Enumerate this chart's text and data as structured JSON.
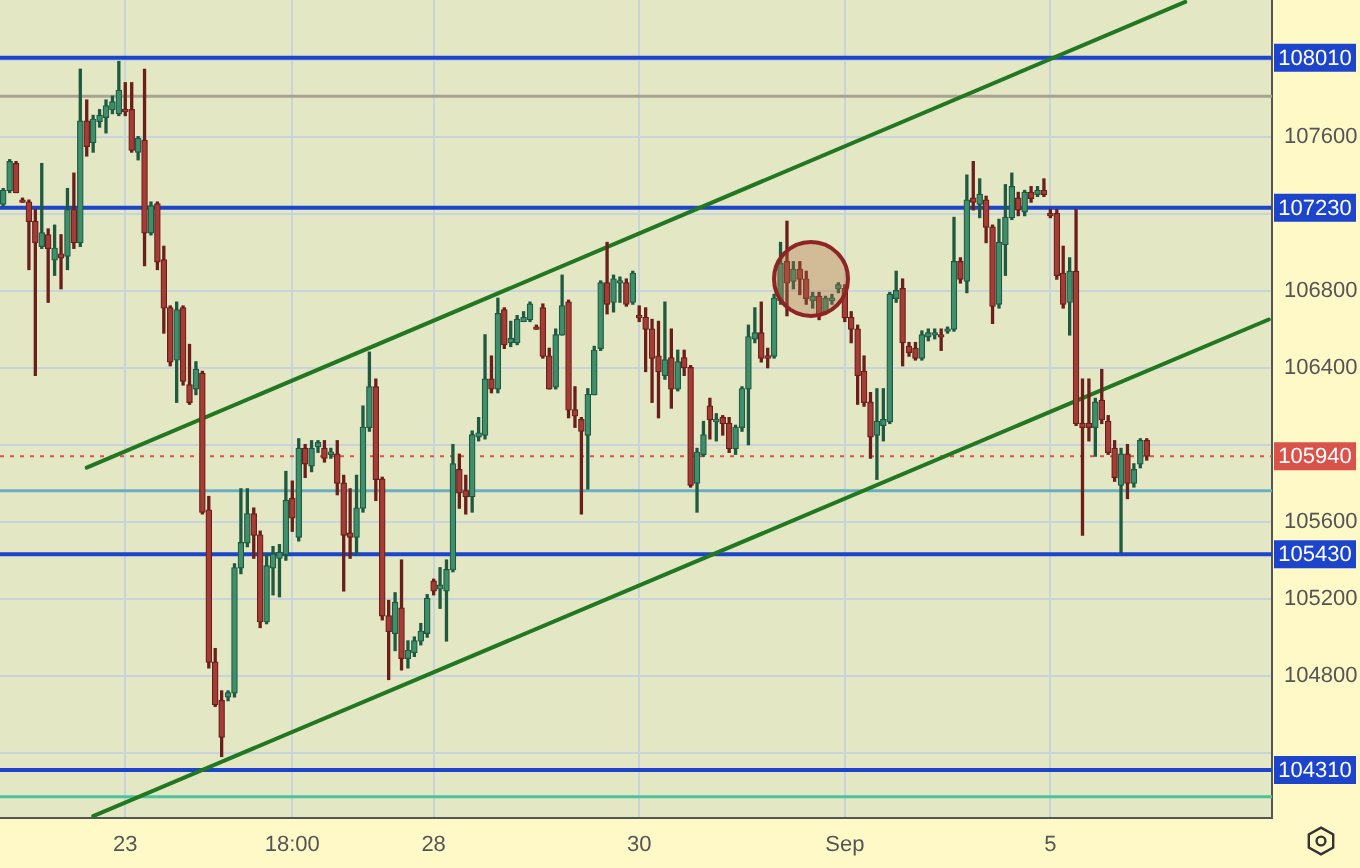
{
  "chart_data": {
    "type": "candlestick",
    "categories": [
      null,
      null,
      null,
      null,
      null,
      null,
      null,
      null,
      null,
      null,
      null,
      null,
      null,
      null,
      null,
      null,
      null,
      null,
      null,
      "23",
      null,
      null,
      null,
      null,
      null,
      null,
      null,
      null,
      null,
      null,
      null,
      null,
      null,
      null,
      null,
      null,
      null,
      null,
      null,
      null,
      null,
      null,
      null,
      null,
      null,
      "18:00",
      null,
      null,
      null,
      null,
      null,
      null,
      null,
      null,
      null,
      null,
      null,
      null,
      null,
      null,
      null,
      null,
      null,
      null,
      null,
      null,
      null,
      "28",
      null,
      null,
      null,
      null,
      null,
      null,
      null,
      null,
      null,
      null,
      null,
      null,
      null,
      null,
      null,
      null,
      null,
      null,
      null,
      null,
      null,
      null,
      null,
      null,
      null,
      null,
      null,
      null,
      null,
      null,
      null,
      "30",
      null,
      null,
      null,
      null,
      null,
      null,
      null,
      null,
      null,
      null,
      null,
      null,
      null,
      null,
      null,
      null,
      null,
      null,
      null,
      null,
      null,
      null,
      null,
      null,
      null,
      null,
      null,
      null,
      null,
      null,
      null,
      "Sep",
      null,
      null,
      null,
      null,
      null,
      null,
      null,
      null,
      null,
      null,
      null,
      null,
      null,
      null,
      null,
      null,
      null,
      null,
      null,
      null,
      null,
      null,
      null,
      null,
      null,
      null,
      null,
      null,
      null,
      null,
      null,
      "5",
      null,
      null,
      null,
      null,
      null,
      null,
      null,
      null,
      null,
      null,
      null,
      null,
      null,
      null,
      null,
      null,
      null,
      null,
      null,
      null,
      null,
      null,
      null,
      null,
      null,
      null,
      null,
      null,
      null,
      null,
      null,
      null,
      null,
      null
    ],
    "ohlc": [
      [
        107250,
        107330,
        107240,
        107320
      ],
      [
        107320,
        107480,
        107310,
        107470
      ],
      [
        107460,
        107470,
        107310,
        107310
      ],
      [
        107270,
        107280,
        107260,
        107260
      ],
      [
        107260,
        107270,
        106910,
        107160
      ],
      [
        107160,
        107220,
        106360,
        107050
      ],
      [
        107030,
        107460,
        107020,
        107100
      ],
      [
        107090,
        107120,
        106740,
        107020
      ],
      [
        106960,
        107140,
        106880,
        107020
      ],
      [
        106990,
        107090,
        106810,
        106970
      ],
      [
        106980,
        107330,
        106910,
        107220
      ],
      [
        107220,
        107410,
        107020,
        107050
      ],
      [
        107050,
        107950,
        107030,
        107680
      ],
      [
        107680,
        107790,
        107500,
        107550
      ],
      [
        107570,
        107710,
        107520,
        107690
      ],
      [
        107680,
        107740,
        107650,
        107710
      ],
      [
        107700,
        107790,
        107620,
        107760
      ],
      [
        107740,
        107810,
        107720,
        107780
      ],
      [
        107720,
        107990,
        107710,
        107840
      ],
      [
        107740,
        107880,
        107710,
        107730
      ],
      [
        107740,
        107880,
        107520,
        107530
      ],
      [
        107520,
        107600,
        107480,
        107590
      ],
      [
        107580,
        107950,
        106930,
        107100
      ],
      [
        107100,
        107260,
        107090,
        107240
      ],
      [
        107250,
        107260,
        106910,
        106950
      ],
      [
        106960,
        107030,
        106580,
        106710
      ],
      [
        106710,
        106720,
        106410,
        106430
      ],
      [
        106440,
        106740,
        106220,
        106700
      ],
      [
        106710,
        106720,
        106310,
        106330
      ],
      [
        106310,
        106520,
        106210,
        106220
      ],
      [
        106290,
        106430,
        106260,
        106390
      ],
      [
        106370,
        106380,
        105640,
        105650
      ],
      [
        105660,
        105730,
        104840,
        104870
      ],
      [
        104870,
        104940,
        104640,
        104650
      ],
      [
        104670,
        104720,
        104380,
        104480
      ],
      [
        104690,
        104720,
        104670,
        104710
      ],
      [
        104710,
        105380,
        104690,
        105360
      ],
      [
        105360,
        105770,
        105330,
        105490
      ],
      [
        105490,
        105770,
        105470,
        105640
      ],
      [
        105640,
        105670,
        105410,
        105530
      ],
      [
        105530,
        105550,
        105050,
        105080
      ],
      [
        105080,
        105430,
        105070,
        105370
      ],
      [
        105360,
        105470,
        105220,
        105430
      ],
      [
        105410,
        105480,
        105210,
        105440
      ],
      [
        105430,
        105860,
        105400,
        105710
      ],
      [
        105720,
        105810,
        105550,
        105620
      ],
      [
        105520,
        106030,
        105500,
        105980
      ],
      [
        105980,
        106000,
        105830,
        105900
      ],
      [
        105890,
        106020,
        105860,
        105980
      ],
      [
        105990,
        106020,
        105960,
        106010
      ],
      [
        105980,
        106020,
        105910,
        105930
      ],
      [
        105950,
        105980,
        105930,
        105950
      ],
      [
        105950,
        106020,
        105740,
        105800
      ],
      [
        105800,
        105840,
        105240,
        105530
      ],
      [
        105540,
        105770,
        105410,
        105520
      ],
      [
        105520,
        105840,
        105430,
        105670
      ],
      [
        105670,
        106200,
        105650,
        106090
      ],
      [
        106090,
        106480,
        106070,
        106300
      ],
      [
        106300,
        106340,
        105710,
        105820
      ],
      [
        105820,
        105830,
        105090,
        105110
      ],
      [
        105110,
        105190,
        104780,
        105030
      ],
      [
        105020,
        105230,
        104930,
        105180
      ],
      [
        105150,
        105400,
        104830,
        104890
      ],
      [
        104890,
        104980,
        104840,
        104930
      ],
      [
        104920,
        105000,
        104900,
        104980
      ],
      [
        104980,
        105070,
        104960,
        105030
      ],
      [
        105020,
        105220,
        105000,
        105200
      ],
      [
        105290,
        105300,
        105220,
        105240
      ],
      [
        105250,
        105360,
        105150,
        105270
      ],
      [
        105240,
        105400,
        104980,
        105350
      ],
      [
        105350,
        106000,
        105340,
        105900
      ],
      [
        105870,
        105950,
        105670,
        105750
      ],
      [
        105760,
        105840,
        105640,
        105730
      ],
      [
        105730,
        106070,
        105650,
        106050
      ],
      [
        106040,
        106140,
        106020,
        106060
      ],
      [
        106050,
        106570,
        106030,
        106340
      ],
      [
        106340,
        106460,
        106270,
        106290
      ],
      [
        106290,
        106760,
        106270,
        106680
      ],
      [
        106700,
        106710,
        106500,
        106520
      ],
      [
        106530,
        106640,
        106510,
        106550
      ],
      [
        106530,
        106670,
        106520,
        106650
      ],
      [
        106640,
        106690,
        106640,
        106660
      ],
      [
        106650,
        106740,
        106640,
        106730
      ],
      [
        106610,
        106620,
        106600,
        106600
      ],
      [
        106710,
        106730,
        106450,
        106460
      ],
      [
        106460,
        106500,
        106290,
        106290
      ],
      [
        106300,
        106600,
        106290,
        106570
      ],
      [
        106570,
        106880,
        106570,
        106720
      ],
      [
        106740,
        106750,
        106140,
        106180
      ],
      [
        106180,
        106300,
        106090,
        106150
      ],
      [
        106130,
        106140,
        105640,
        106070
      ],
      [
        106050,
        106290,
        105770,
        106260
      ],
      [
        106260,
        106510,
        106260,
        106490
      ],
      [
        106500,
        106850,
        106490,
        106840
      ],
      [
        106840,
        107050,
        106680,
        106730
      ],
      [
        106740,
        106880,
        106690,
        106860
      ],
      [
        106840,
        106870,
        106740,
        106850
      ],
      [
        106840,
        106860,
        106720,
        106730
      ],
      [
        106740,
        106900,
        106730,
        106890
      ],
      [
        106670,
        106720,
        106640,
        106660
      ],
      [
        106660,
        106710,
        106380,
        106600
      ],
      [
        106600,
        106650,
        106220,
        106450
      ],
      [
        106460,
        106640,
        106140,
        106380
      ],
      [
        106360,
        106740,
        106340,
        106440
      ],
      [
        106450,
        106600,
        106190,
        106290
      ],
      [
        106290,
        106490,
        106280,
        106430
      ],
      [
        106450,
        106490,
        106360,
        106400
      ],
      [
        106400,
        106410,
        105780,
        105790
      ],
      [
        105800,
        105980,
        105650,
        105960
      ],
      [
        105950,
        106120,
        105940,
        106050
      ],
      [
        106200,
        106240,
        106030,
        106130
      ],
      [
        106120,
        106160,
        106020,
        106130
      ],
      [
        106140,
        106150,
        106050,
        106110
      ],
      [
        106110,
        106140,
        105960,
        105980
      ],
      [
        105980,
        106100,
        105950,
        106090
      ],
      [
        106090,
        106300,
        106070,
        106290
      ],
      [
        106290,
        106620,
        106000,
        106560
      ],
      [
        106550,
        106710,
        106530,
        106580
      ],
      [
        106580,
        106740,
        106430,
        106450
      ],
      [
        106460,
        106500,
        106400,
        106450
      ],
      [
        106460,
        106780,
        106450,
        106760
      ],
      [
        106750,
        107050,
        106730,
        106940
      ],
      [
        106950,
        107160,
        106670,
        106840
      ],
      [
        106850,
        106950,
        106810,
        106910
      ],
      [
        106910,
        106950,
        106780,
        106860
      ],
      [
        106860,
        106900,
        106730,
        106760
      ],
      [
        106750,
        106790,
        106710,
        106770
      ],
      [
        106770,
        106790,
        106650,
        106670
      ],
      [
        106690,
        106770,
        106680,
        106760
      ],
      [
        106750,
        106780,
        106730,
        106760
      ],
      [
        106810,
        106840,
        106790,
        106830
      ],
      [
        106810,
        106830,
        106640,
        106660
      ],
      [
        106660,
        106690,
        106530,
        106600
      ],
      [
        106600,
        106620,
        106210,
        106360
      ],
      [
        106380,
        106460,
        106200,
        106220
      ],
      [
        106220,
        106270,
        105930,
        106040
      ],
      [
        106050,
        106290,
        105820,
        106120
      ],
      [
        106100,
        106290,
        106020,
        106130
      ],
      [
        106120,
        106790,
        106110,
        106780
      ],
      [
        106760,
        106900,
        106740,
        106800
      ],
      [
        106810,
        106860,
        106410,
        106530
      ],
      [
        106510,
        106530,
        106460,
        106480
      ],
      [
        106500,
        106530,
        106440,
        106450
      ],
      [
        106450,
        106590,
        106440,
        106570
      ],
      [
        106560,
        106600,
        106540,
        106580
      ],
      [
        106570,
        106600,
        106550,
        106580
      ],
      [
        106570,
        106600,
        106490,
        106560
      ],
      [
        106590,
        106610,
        106580,
        106600
      ],
      [
        106600,
        107180,
        106590,
        106950
      ],
      [
        106950,
        106970,
        106840,
        106860
      ],
      [
        106850,
        107400,
        106790,
        107270
      ],
      [
        107280,
        107470,
        107220,
        107260
      ],
      [
        107250,
        107380,
        107180,
        107300
      ],
      [
        107270,
        107290,
        107050,
        107130
      ],
      [
        107130,
        107140,
        106630,
        106720
      ],
      [
        106730,
        107170,
        106710,
        107050
      ],
      [
        107040,
        107350,
        106880,
        107180
      ],
      [
        107180,
        107410,
        107170,
        107340
      ],
      [
        107280,
        107310,
        107190,
        107220
      ],
      [
        107210,
        107320,
        107190,
        107310
      ],
      [
        107310,
        107340,
        107260,
        107280
      ],
      [
        107300,
        107340,
        107290,
        107320
      ],
      [
        107320,
        107380,
        107290,
        107300
      ],
      [
        107200,
        107220,
        107180,
        107190
      ],
      [
        107200,
        107220,
        106860,
        106880
      ],
      [
        106890,
        107030,
        106710,
        106730
      ],
      [
        106740,
        106970,
        106570,
        106900
      ],
      [
        106900,
        107220,
        106100,
        106110
      ],
      [
        106110,
        106340,
        105530,
        106090
      ],
      [
        106110,
        106340,
        106020,
        106090
      ],
      [
        106090,
        106240,
        105940,
        106220
      ],
      [
        106230,
        106390,
        106110,
        106130
      ],
      [
        106120,
        106150,
        105950,
        105960
      ],
      [
        105980,
        106020,
        105810,
        105830
      ],
      [
        105790,
        105980,
        105440,
        105950
      ],
      [
        105950,
        106000,
        105720,
        105800
      ],
      [
        105800,
        105900,
        105780,
        105870
      ],
      [
        105900,
        106030,
        105880,
        106020
      ],
      [
        106020,
        106030,
        105920,
        105940
      ],
      null,
      null,
      null,
      null,
      null,
      null,
      null,
      null,
      null,
      null,
      null,
      null,
      null,
      null,
      null,
      null,
      null,
      null,
      null
    ],
    "series": [
      {
        "type": "line",
        "color": "#227722",
        "values": [
          null,
          null,
          null,
          null,
          null,
          null,
          null,
          null,
          null,
          null,
          null,
          null,
          null,
          105880,
          null,
          null,
          null,
          null,
          null,
          null,
          null,
          null,
          null,
          null,
          null,
          null,
          null,
          null,
          null,
          null,
          null,
          null,
          null,
          null,
          null,
          null,
          null,
          null,
          null,
          null,
          null,
          null,
          null,
          null,
          null,
          null,
          null,
          null,
          null,
          null,
          null,
          null,
          null,
          null,
          null,
          null,
          null,
          null,
          null,
          null,
          null,
          null,
          null,
          null,
          null,
          null,
          null,
          null,
          null,
          null,
          null,
          null,
          null,
          null,
          null,
          null,
          null,
          null,
          null,
          null,
          null,
          null,
          null,
          null,
          null,
          null,
          null,
          null,
          null,
          null,
          null,
          null,
          null,
          null,
          null,
          null,
          null,
          null,
          null,
          null,
          null,
          null,
          null,
          null,
          null,
          null,
          null,
          null,
          null,
          null,
          null,
          null,
          null,
          null,
          null,
          null,
          null,
          null,
          null,
          null,
          null,
          null,
          null,
          null,
          null,
          null,
          null,
          null,
          null,
          null,
          null,
          null,
          null,
          null,
          null,
          null,
          null,
          null,
          null,
          null,
          null,
          null,
          null,
          null,
          null,
          null,
          null,
          null,
          null,
          null,
          null,
          null,
          null,
          null,
          null,
          null,
          null,
          null,
          null,
          null,
          null,
          null,
          null,
          null,
          null,
          null,
          null,
          null,
          null,
          null,
          null,
          null,
          null,
          null,
          null,
          null,
          null,
          null,
          null,
          null,
          null,
          null,
          null,
          null,
          108300,
          null,
          null,
          null,
          null,
          null,
          null,
          null,
          null,
          null,
          null,
          null,
          null,
          null
        ]
      },
      {
        "type": "line",
        "color": "#227722",
        "values": [
          null,
          null,
          null,
          null,
          null,
          null,
          null,
          null,
          null,
          null,
          null,
          null,
          null,
          null,
          104070,
          null,
          null,
          null,
          null,
          null,
          null,
          null,
          null,
          null,
          null,
          null,
          null,
          null,
          null,
          null,
          null,
          null,
          null,
          null,
          null,
          null,
          null,
          null,
          null,
          null,
          null,
          null,
          null,
          null,
          null,
          null,
          null,
          null,
          null,
          null,
          null,
          null,
          null,
          null,
          null,
          null,
          null,
          null,
          null,
          null,
          null,
          null,
          null,
          null,
          null,
          null,
          null,
          null,
          null,
          null,
          null,
          null,
          null,
          null,
          null,
          null,
          null,
          null,
          null,
          null,
          null,
          null,
          null,
          null,
          null,
          null,
          null,
          null,
          null,
          null,
          null,
          null,
          null,
          null,
          null,
          null,
          null,
          null,
          null,
          null,
          null,
          null,
          null,
          null,
          null,
          null,
          null,
          null,
          null,
          null,
          null,
          null,
          null,
          null,
          null,
          null,
          null,
          null,
          null,
          null,
          null,
          null,
          null,
          null,
          null,
          null,
          null,
          null,
          null,
          null,
          null,
          null,
          null,
          null,
          null,
          null,
          null,
          null,
          null,
          null,
          null,
          null,
          null,
          null,
          null,
          null,
          null,
          null,
          null,
          null,
          null,
          null,
          null,
          null,
          null,
          null,
          null,
          null,
          null,
          null,
          null,
          null,
          null,
          null,
          null,
          null,
          null,
          null,
          null,
          null,
          null,
          null,
          null,
          null,
          null,
          null,
          null,
          null,
          null,
          null,
          null,
          null,
          null,
          null,
          null,
          null,
          null,
          null,
          null,
          null,
          null,
          null,
          null,
          null,
          null,
          null,
          null,
          106650
        ]
      }
    ],
    "ylim": [
      104060,
      108310
    ],
    "yticks": [
      {
        "value": 104400,
        "label": null
      },
      104800,
      105200,
      105600,
      {
        "value": 106000,
        "label": null
      },
      106400,
      106800,
      {
        "value": 107200,
        "label": null
      },
      107600,
      {
        "value": 108000,
        "label": null
      }
    ],
    "grid": true,
    "ref_lines": [
      {
        "axis": "y",
        "value": 108010,
        "label": "108010",
        "color": "#1d45cc"
      },
      {
        "axis": "y",
        "value": 107810,
        "color": "#a8a290"
      },
      {
        "axis": "y",
        "value": 107230,
        "label": "107230",
        "color": "#1d45cc"
      },
      {
        "axis": "y",
        "value": 105940,
        "label": "105940",
        "color": "#d9534a",
        "line_style": "dotted"
      },
      {
        "axis": "y",
        "value": 105760,
        "color": "#6aaec0"
      },
      {
        "axis": "y",
        "value": 105430,
        "label": "105430",
        "color": "#1d45cc"
      },
      {
        "axis": "y",
        "value": 104310,
        "label": "104310",
        "color": "#1d45cc"
      },
      {
        "axis": "y",
        "value": 104170,
        "color": "#4cc39a"
      }
    ]
  }
}
